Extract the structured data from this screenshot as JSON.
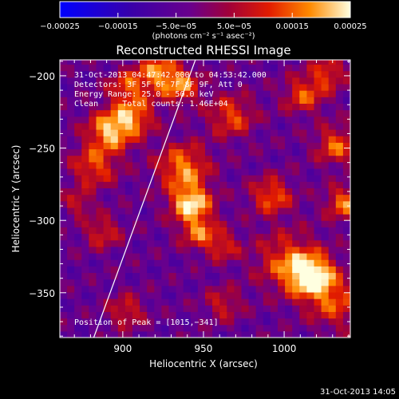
{
  "chart_data": {
    "type": "heatmap",
    "title": "Reconstructed RHESSI Image",
    "xlabel": "Heliocentric X (arcsec)",
    "ylabel": "Heliocentric Y (arcsec)",
    "xlim": [
      861,
      1041
    ],
    "ylim": [
      -381,
      -189
    ],
    "xticks": [
      900,
      950,
      1000
    ],
    "xtick_labels": [
      "900",
      "950",
      "1000"
    ],
    "yticks": [
      -200,
      -250,
      -300,
      -350
    ],
    "ytick_labels": [
      "−200",
      "−250",
      "−300",
      "−350"
    ],
    "colorbar": {
      "range": [
        -0.00025,
        0.00025
      ],
      "ticks": [
        -0.00025,
        -0.00015,
        -5e-05,
        5e-05,
        0.00015,
        0.00025
      ],
      "tick_labels": [
        "−0.00025",
        "−0.00015",
        "−5.0e−05",
        "5.0e−05",
        "0.00015",
        "0.00025"
      ],
      "unit_label": "(photons cm⁻² s⁻¹ asec⁻²)"
    },
    "info_lines": [
      "31-Oct-2013 04:47:42.000 to 04:53:42.000",
      "Detectors: 3F 5F 6F 7F 8F 9F, Att 0",
      "Energy Range: 25.0 - 50.0 keV",
      "Clean     Total counts: 1.46E+04"
    ],
    "peak_label": "Position of Peak = [1015,−341]",
    "peak": {
      "x": 1015,
      "y": -341
    },
    "limb_line": [
      [
        882,
        -381
      ],
      [
        945,
        -189
      ]
    ],
    "timestamp": "31-Oct-2013 14:05",
    "colormap": "red-temperature",
    "grid": false
  }
}
